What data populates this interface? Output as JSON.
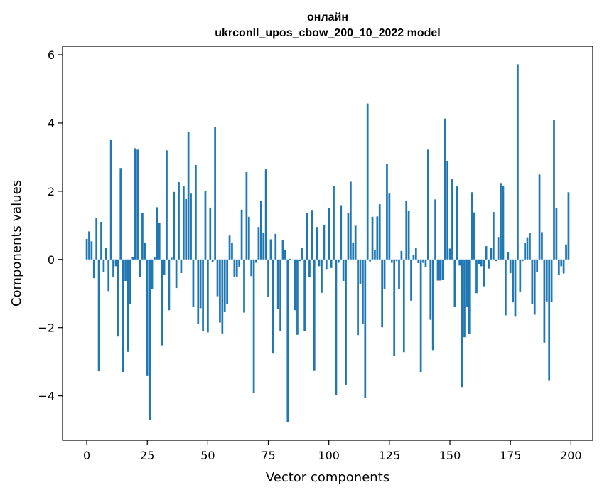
{
  "chart_data": {
    "type": "bar",
    "title_line1": "онлайн",
    "title_line2": "ukrconll_upos_cbow_200_10_2022 model",
    "xlabel": "Vector components",
    "ylabel": "Components values",
    "xlim": [
      -10,
      209
    ],
    "ylim": [
      -5.3,
      6.25
    ],
    "xticks": [
      0,
      25,
      50,
      75,
      100,
      125,
      150,
      175,
      200
    ],
    "xtick_labels": [
      "0",
      "25",
      "50",
      "75",
      "100",
      "125",
      "150",
      "175",
      "200"
    ],
    "yticks": [
      -4,
      -2,
      0,
      2,
      4,
      6
    ],
    "ytick_labels": [
      "−4",
      "−2",
      "0",
      "2",
      "4",
      "6"
    ],
    "grid": false,
    "bar_color": "#1f77b4",
    "values": [
      0.6,
      0.82,
      0.53,
      -0.55,
      1.22,
      -3.27,
      1.1,
      -0.38,
      0.35,
      -0.93,
      3.5,
      -0.52,
      -0.2,
      -2.26,
      2.68,
      -3.3,
      -0.63,
      -2.71,
      -1.31,
      0.07,
      3.26,
      3.22,
      -0.52,
      1.37,
      0.49,
      -3.4,
      -4.7,
      -0.87,
      0.08,
      1.53,
      1.07,
      -2.52,
      -0.46,
      3.2,
      -1.49,
      0.05,
      1.98,
      -0.84,
      2.27,
      -0.4,
      2.15,
      1.77,
      3.75,
      1.93,
      -1.4,
      2.77,
      -1.9,
      -1.43,
      -2.09,
      2.02,
      -2.14,
      1.52,
      -0.08,
      3.89,
      -1.08,
      -1.85,
      -2.17,
      -1.53,
      -1.31,
      0.7,
      0.49,
      -0.52,
      -0.5,
      -0.21,
      1.46,
      -1.56,
      2.56,
      1.25,
      -0.49,
      -3.92,
      -0.1,
      0.95,
      1.72,
      0.77,
      2.64,
      -1.1,
      0.59,
      -2.76,
      0.75,
      -1.45,
      -2.1,
      0.57,
      0.29,
      -4.78,
      0.02,
      -0.02,
      -1.49,
      -2.21,
      -0.05,
      0.34,
      -2.09,
      1.36,
      -0.52,
      1.45,
      -3.25,
      0.95,
      -0.2,
      -0.98,
      1.02,
      -0.28,
      1.5,
      -0.25,
      2.16,
      -3.98,
      -0.1,
      1.59,
      -0.63,
      -3.68,
      1.37,
      2.28,
      0.5,
      0.99,
      -2.22,
      -0.71,
      -1.9,
      -4.07,
      4.57,
      -0.06,
      1.25,
      0.28,
      1.26,
      1.62,
      -1.99,
      -0.88,
      2.8,
      1.93,
      -0.1,
      -2.82,
      -0.05,
      -0.86,
      0.25,
      -2.72,
      1.72,
      1.42,
      -1.21,
      0.13,
      0.35,
      -0.11,
      -3.3,
      -0.1,
      -0.23,
      3.22,
      -1.77,
      -2.66,
      1.76,
      -0.62,
      -0.62,
      -0.59,
      4.13,
      2.89,
      0.32,
      2.35,
      -1.39,
      2.14,
      -0.18,
      -3.74,
      -2.28,
      -1.39,
      -2.18,
      1.97,
      1.38,
      -0.99,
      -0.13,
      -0.2,
      -0.79,
      0.39,
      -0.27,
      0.34,
      1.39,
      -0.05,
      0.66,
      2.22,
      2.16,
      -1.64,
      0.21,
      -0.4,
      -1.26,
      -1.68,
      5.72,
      -0.94,
      -0.05,
      0.49,
      0.65,
      0.77,
      -1.3,
      -1.62,
      -0.38,
      2.49,
      0.8,
      -2.44,
      -1.23,
      -3.56,
      -1.24,
      4.08,
      1.5,
      -0.45,
      -0.2,
      -0.41,
      0.44,
      1.97
    ]
  }
}
